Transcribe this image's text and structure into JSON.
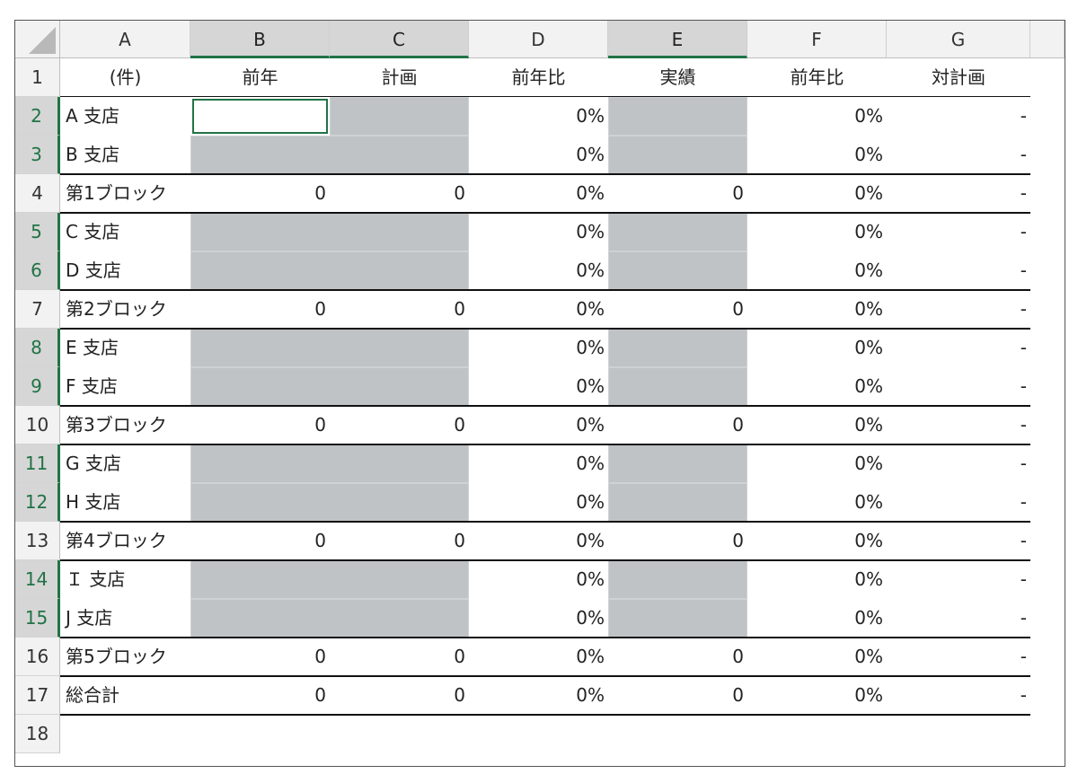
{
  "columns": [
    "A",
    "B",
    "C",
    "D",
    "E",
    "F",
    "G"
  ],
  "row_numbers": [
    "1",
    "2",
    "3",
    "4",
    "5",
    "6",
    "7",
    "8",
    "9",
    "10",
    "11",
    "12",
    "13",
    "14",
    "15",
    "16",
    "17",
    "18"
  ],
  "header": [
    "(件)",
    "前年",
    "計画",
    "前年比",
    "実績",
    "前年比",
    "対計画"
  ],
  "rows": [
    {
      "name": "A 支店",
      "b": "",
      "c": "",
      "d": "0%",
      "e": "",
      "f": "0%",
      "g": "-"
    },
    {
      "name": "B 支店",
      "b": "",
      "c": "",
      "d": "0%",
      "e": "",
      "f": "0%",
      "g": "-"
    },
    {
      "name": "第1ブロック",
      "b": "0",
      "c": "0",
      "d": "0%",
      "e": "0",
      "f": "0%",
      "g": "-"
    },
    {
      "name": "C 支店",
      "b": "",
      "c": "",
      "d": "0%",
      "e": "",
      "f": "0%",
      "g": "-"
    },
    {
      "name": "D 支店",
      "b": "",
      "c": "",
      "d": "0%",
      "e": "",
      "f": "0%",
      "g": "-"
    },
    {
      "name": "第2ブロック",
      "b": "0",
      "c": "0",
      "d": "0%",
      "e": "0",
      "f": "0%",
      "g": "-"
    },
    {
      "name": "E 支店",
      "b": "",
      "c": "",
      "d": "0%",
      "e": "",
      "f": "0%",
      "g": "-"
    },
    {
      "name": "F 支店",
      "b": "",
      "c": "",
      "d": "0%",
      "e": "",
      "f": "0%",
      "g": "-"
    },
    {
      "name": "第3ブロック",
      "b": "0",
      "c": "0",
      "d": "0%",
      "e": "0",
      "f": "0%",
      "g": "-"
    },
    {
      "name": "G 支店",
      "b": "",
      "c": "",
      "d": "0%",
      "e": "",
      "f": "0%",
      "g": "-"
    },
    {
      "name": "H 支店",
      "b": "",
      "c": "",
      "d": "0%",
      "e": "",
      "f": "0%",
      "g": "-"
    },
    {
      "name": "第4ブロック",
      "b": "0",
      "c": "0",
      "d": "0%",
      "e": "0",
      "f": "0%",
      "g": "-"
    },
    {
      "name": "Ｉ 支店",
      "b": "",
      "c": "",
      "d": "0%",
      "e": "",
      "f": "0%",
      "g": "-"
    },
    {
      "name": "J 支店",
      "b": "",
      "c": "",
      "d": "0%",
      "e": "",
      "f": "0%",
      "g": "-"
    },
    {
      "name": "第5ブロック",
      "b": "0",
      "c": "0",
      "d": "0%",
      "e": "0",
      "f": "0%",
      "g": "-"
    },
    {
      "name": "総合計",
      "b": "0",
      "c": "0",
      "d": "0%",
      "e": "0",
      "f": "0%",
      "g": "-"
    },
    {
      "name": "",
      "b": "",
      "c": "",
      "d": "",
      "e": "",
      "f": "",
      "g": ""
    }
  ],
  "selected_columns": [
    "B",
    "C",
    "E"
  ],
  "selected_rows": [
    "2",
    "3",
    "5",
    "6",
    "8",
    "9",
    "11",
    "12",
    "14",
    "15"
  ],
  "input_row_indices": [
    0,
    1,
    3,
    4,
    6,
    7,
    9,
    10,
    12,
    13
  ],
  "colors": {
    "selection_accent": "#217346",
    "input_fill": "#bfc3c6",
    "header_bg": "#f2f2f2"
  }
}
